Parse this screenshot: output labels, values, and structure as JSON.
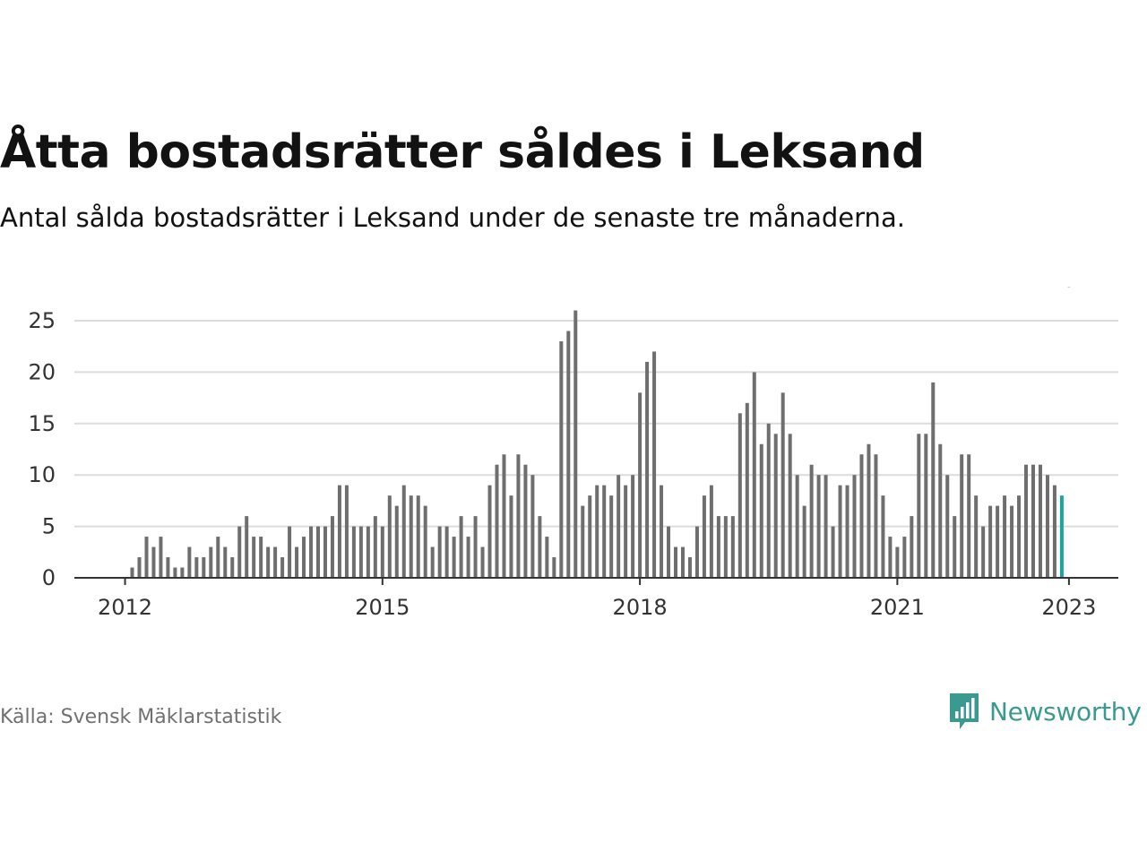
{
  "header": {
    "title": "Åtta bostadsrätter såldes i Leksand",
    "subtitle": "Antal sålda bostadsrätter i Leksand under de senaste tre månaderna."
  },
  "footer": {
    "source": "Källa: Svensk Mäklarstatistik",
    "brand": "Newsworthy",
    "brand_icon": "bar-chart-speech-bubble-icon",
    "brand_color": "#3a9a8f"
  },
  "chart_data": {
    "type": "bar",
    "title": "",
    "xlabel": "",
    "ylabel": "",
    "ylim": [
      0,
      25
    ],
    "yticks": [
      0,
      5,
      10,
      15,
      20,
      25
    ],
    "grid": true,
    "bar_color": "#6e6e6e",
    "highlight_color": "#1aa6a0",
    "x_start": "2012-01",
    "xtick_labels": [
      {
        "label": "2012",
        "month": "2012-01"
      },
      {
        "label": "2015",
        "month": "2015-01"
      },
      {
        "label": "2018",
        "month": "2018-01"
      },
      {
        "label": "2021",
        "month": "2021-01"
      },
      {
        "label": "2023",
        "month": "2023-01"
      }
    ],
    "annotation": {
      "month": "2023-01",
      "text": "8"
    },
    "values": [
      0,
      1,
      2,
      4,
      3,
      4,
      2,
      1,
      1,
      3,
      2,
      2,
      3,
      4,
      3,
      2,
      5,
      6,
      4,
      4,
      3,
      3,
      2,
      5,
      3,
      4,
      5,
      5,
      5,
      6,
      9,
      9,
      5,
      5,
      5,
      6,
      5,
      8,
      7,
      9,
      8,
      8,
      7,
      3,
      5,
      5,
      4,
      6,
      4,
      6,
      3,
      9,
      11,
      12,
      8,
      12,
      11,
      10,
      6,
      4,
      2,
      23,
      24,
      26,
      7,
      8,
      9,
      9,
      8,
      10,
      9,
      10,
      18,
      21,
      22,
      9,
      5,
      3,
      3,
      2,
      5,
      8,
      9,
      6,
      6,
      6,
      16,
      17,
      20,
      13,
      15,
      14,
      18,
      14,
      10,
      7,
      11,
      10,
      10,
      5,
      9,
      9,
      10,
      12,
      13,
      12,
      8,
      4,
      3,
      4,
      6,
      14,
      14,
      19,
      13,
      10,
      6,
      12,
      12,
      8,
      5,
      7,
      7,
      8,
      7,
      8,
      11,
      11,
      11,
      10,
      9,
      8
    ]
  }
}
